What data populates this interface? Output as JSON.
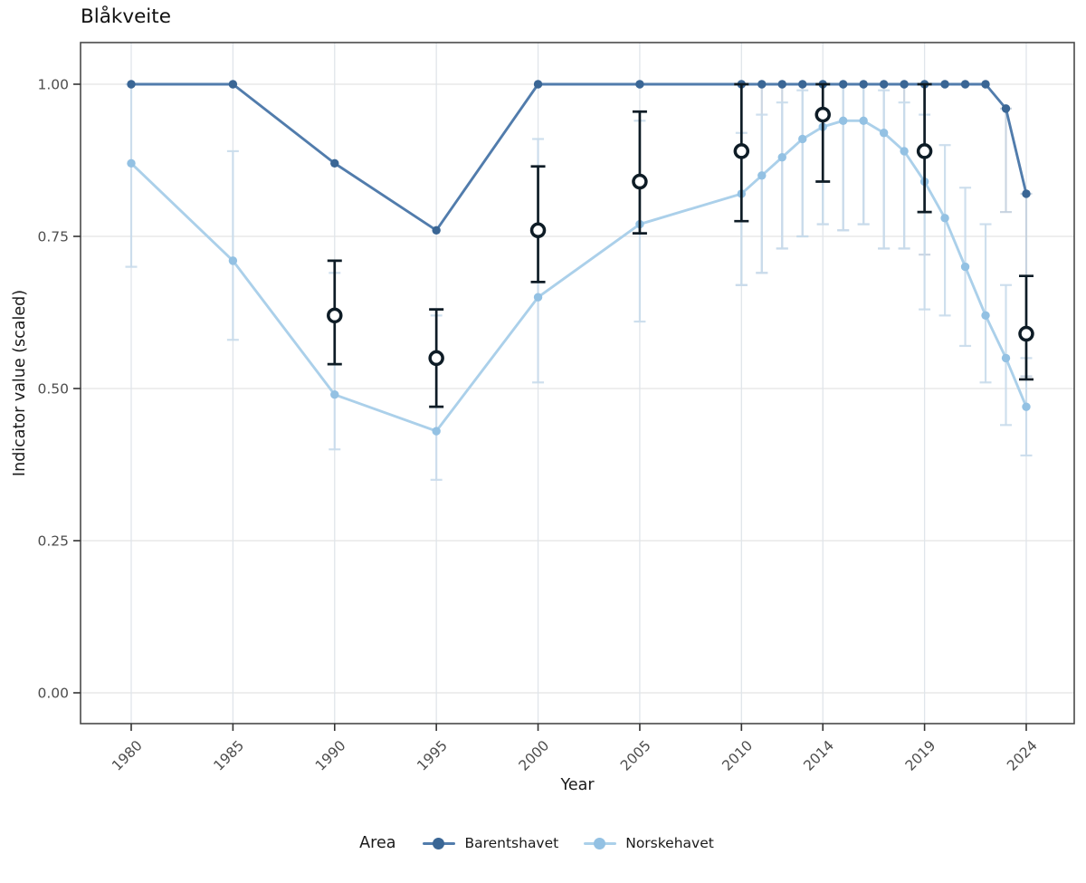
{
  "title": "Blåkveite",
  "axes": {
    "x": {
      "label": "Year",
      "ticks": [
        1980,
        1985,
        1990,
        1995,
        2000,
        2005,
        2010,
        2014,
        2019,
        2024
      ]
    },
    "y": {
      "label": "Indicator value (scaled)",
      "tick_labels": [
        "0.00",
        "0.25",
        "0.50",
        "0.75",
        "1.00"
      ],
      "tick_values": [
        0,
        0.25,
        0.5,
        0.75,
        1
      ]
    }
  },
  "legend": {
    "title": "Area",
    "items": [
      {
        "label": "Barentshavet",
        "point_color": "#3a6695",
        "line_color": "#517cac"
      },
      {
        "label": "Norskehavet",
        "point_color": "#93c1e3",
        "line_color": "#abd0ea"
      }
    ]
  },
  "colors": {
    "black_points": "#0e1c26",
    "dark_ci": "#c2cfdd",
    "light_ci": "#c9dcec",
    "grid_h": "#e4e4e4",
    "grid_v": "#e0e5ea",
    "panel_border": "#4a4a4a",
    "tick_mark": "#333333",
    "tick_label": "#4d4d4d"
  },
  "chart_data": {
    "type": "line",
    "title": "Blåkveite",
    "xlabel": "Year",
    "ylabel": "Indicator value (scaled)",
    "ylim": [
      0,
      1
    ],
    "xlim": [
      1977.5,
      2026.5
    ],
    "grid": true,
    "legend_position": "bottom",
    "x": [
      1980,
      1985,
      1990,
      1995,
      2000,
      2005,
      2010,
      2011,
      2012,
      2013,
      2014,
      2015,
      2016,
      2017,
      2018,
      2019,
      2020,
      2021,
      2022,
      2023,
      2024
    ],
    "series": [
      {
        "name": "Barentshavet",
        "values": [
          1.0,
          1.0,
          0.87,
          0.76,
          1.0,
          1.0,
          1.0,
          1.0,
          1.0,
          1.0,
          1.0,
          1.0,
          1.0,
          1.0,
          1.0,
          1.0,
          1.0,
          1.0,
          1.0,
          0.96,
          0.82
        ],
        "ci": [
          null,
          null,
          null,
          null,
          null,
          null,
          [
            0.67,
            1.0
          ],
          [
            0.69,
            1.0
          ],
          [
            0.73,
            1.0
          ],
          [
            0.75,
            1.0
          ],
          [
            0.77,
            1.0
          ],
          [
            0.76,
            1.0
          ],
          [
            0.77,
            1.0
          ],
          [
            0.73,
            1.0
          ],
          [
            0.73,
            1.0
          ],
          [
            0.72,
            1.0
          ],
          null,
          null,
          null,
          [
            0.79,
            0.96
          ],
          [
            0.52,
            0.82
          ]
        ]
      },
      {
        "name": "Norskehavet",
        "values": [
          0.87,
          0.71,
          0.49,
          0.43,
          0.65,
          0.77,
          0.82,
          0.85,
          0.88,
          0.91,
          0.93,
          0.94,
          0.94,
          0.92,
          0.89,
          0.84,
          0.78,
          0.7,
          0.62,
          0.55,
          0.47
        ],
        "ci": [
          [
            0.7,
            1.0
          ],
          [
            0.58,
            0.89
          ],
          [
            0.4,
            0.69
          ],
          [
            0.35,
            0.62
          ],
          [
            0.51,
            0.91
          ],
          [
            0.61,
            0.94
          ],
          [
            0.67,
            0.92
          ],
          [
            0.69,
            0.95
          ],
          [
            0.73,
            0.97
          ],
          [
            0.75,
            0.99
          ],
          [
            0.77,
            1.0
          ],
          [
            0.76,
            1.0
          ],
          [
            0.77,
            1.0
          ],
          [
            0.73,
            0.99
          ],
          [
            0.73,
            0.97
          ],
          [
            0.63,
            0.95
          ],
          [
            0.62,
            0.9
          ],
          [
            0.57,
            0.83
          ],
          [
            0.51,
            0.77
          ],
          [
            0.44,
            0.67
          ],
          [
            0.39,
            0.55
          ]
        ]
      }
    ],
    "black_points": {
      "description": "unlabeled black open circles with error bars",
      "x": [
        1990,
        1995,
        2000,
        2005,
        2010,
        2014,
        2019,
        2024
      ],
      "values": [
        0.62,
        0.55,
        0.76,
        0.84,
        0.89,
        0.95,
        0.89,
        0.59
      ],
      "lo": [
        0.54,
        0.47,
        0.675,
        0.755,
        0.775,
        0.84,
        0.79,
        0.515
      ],
      "hi": [
        0.71,
        0.63,
        0.865,
        0.955,
        1.0,
        1.0,
        1.0,
        0.685
      ]
    }
  }
}
